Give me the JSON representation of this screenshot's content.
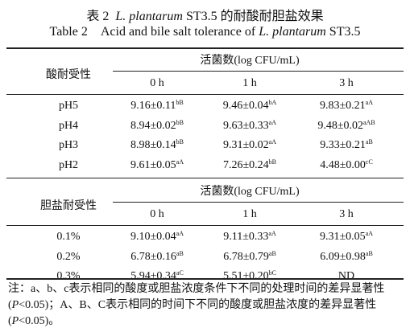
{
  "title_cn": [
    "表 2",
    "L. plantarum",
    "ST3.5 的耐酸耐胆盐效果"
  ],
  "title_en": [
    "Table 2",
    "Acid and bile salt tolerance of",
    "L. plantarum",
    "ST3.5"
  ],
  "sections": [
    {
      "label": "酸耐受性",
      "group": "活菌数(log CFU/mL)",
      "columns": [
        "0 h",
        "1 h",
        "3 h"
      ],
      "rows": [
        {
          "label": "pH5",
          "cells": [
            {
              "value": "9.16±0.11",
              "sup": "bB"
            },
            {
              "value": "9.46±0.04",
              "sup": "bA"
            },
            {
              "value": "9.83±0.21",
              "sup": "aA"
            }
          ]
        },
        {
          "label": "pH4",
          "cells": [
            {
              "value": "8.94±0.02",
              "sup": "bB"
            },
            {
              "value": "9.63±0.33",
              "sup": "aA"
            },
            {
              "value": "9.48±0.02",
              "sup": "aAB"
            }
          ]
        },
        {
          "label": "pH3",
          "cells": [
            {
              "value": "8.98±0.14",
              "sup": "bB"
            },
            {
              "value": "9.31±0.02",
              "sup": "aA"
            },
            {
              "value": "9.33±0.21",
              "sup": "aB"
            }
          ]
        },
        {
          "label": "pH2",
          "cells": [
            {
              "value": "9.61±0.05",
              "sup": "aA"
            },
            {
              "value": "7.26±0.24",
              "sup": "bB"
            },
            {
              "value": "4.48±0.00",
              "sup": "cC"
            }
          ]
        }
      ]
    },
    {
      "label": "胆盐耐受性",
      "group": "活菌数(log CFU/mL)",
      "columns": [
        "0 h",
        "1 h",
        "3 h"
      ],
      "rows": [
        {
          "label": "0.1%",
          "cells": [
            {
              "value": "9.10±0.04",
              "sup": "aA"
            },
            {
              "value": "9.11±0.33",
              "sup": "aA"
            },
            {
              "value": "9.31±0.05",
              "sup": "aA"
            }
          ]
        },
        {
          "label": "0.2%",
          "cells": [
            {
              "value": "6.78±0.16",
              "sup": "aB"
            },
            {
              "value": "6.78±0.79",
              "sup": "aB"
            },
            {
              "value": "6.09±0.98",
              "sup": "aB"
            }
          ]
        },
        {
          "label": "0.3%",
          "cells": [
            {
              "value": "5.94±0.34",
              "sup": "aC"
            },
            {
              "value": "5.51±0.20",
              "sup": "bC"
            },
            {
              "value": "ND"
            }
          ]
        }
      ]
    }
  ],
  "note": [
    "注：a、b、c表示相同的酸度或胆盐浓度条件下不同的处理时间的差异显著性(",
    "P",
    "<0.05)；A、B、C表示相同的时间下不同的酸度或胆盐浓度的差异显著性(",
    "P",
    "<0.05)。"
  ]
}
